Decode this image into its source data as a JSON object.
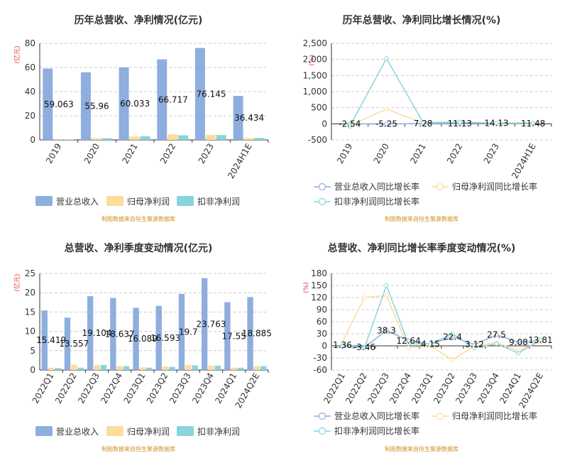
{
  "colors": {
    "revenue": "#8eaede",
    "parent_profit": "#fddc9c",
    "deducted_profit": "#87d5db",
    "axis_text": "#333333",
    "unit_text": "#e5322d",
    "grid": "#cccccc",
    "source_text": "#cc8f1f"
  },
  "source_note": "制图数据来自恒生聚源数据库",
  "chart_data": [
    {
      "id": "annual-amounts",
      "type": "bar",
      "title": "历年总营收、净利情况(亿元)",
      "ylabel": "亿元",
      "ylim": [
        0,
        80
      ],
      "yticks": [
        0,
        20,
        40,
        60,
        80
      ],
      "grid": true,
      "legend_position": "bottom",
      "categories": [
        "2019",
        "2020",
        "2021",
        "2022",
        "2023",
        "2024H1E"
      ],
      "series": [
        {
          "name": "营业总收入",
          "values": [
            59.063,
            55.96,
            60.033,
            66.717,
            76.145,
            36.434
          ],
          "labels": [
            "59.063",
            "55.96",
            "60.033",
            "66.717",
            "76.145",
            "36.434"
          ]
        },
        {
          "name": "归母净利润",
          "values": [
            0.2,
            1.5,
            2.8,
            4.5,
            4.2,
            1.6
          ]
        },
        {
          "name": "扣非净利润",
          "values": [
            0.3,
            1.4,
            3.0,
            3.8,
            4.0,
            1.6
          ]
        }
      ]
    },
    {
      "id": "annual-growth",
      "type": "line",
      "title": "历年总营收、净利同比增长情况(%)",
      "ylabel": "%",
      "ylim": [
        -500,
        2500
      ],
      "yticks": [
        -500,
        0,
        500,
        1000,
        1500,
        2000,
        2500
      ],
      "ytick_labels": [
        "-500",
        "0",
        "500",
        "1,000",
        "1,500",
        "2,000",
        "2,500"
      ],
      "grid": true,
      "legend_position": "bottom",
      "categories": [
        "2019",
        "2020",
        "2021",
        "2022",
        "2023",
        "2024H1E"
      ],
      "series": [
        {
          "name": "营业总收入同比增长率",
          "values": [
            -2.54,
            -5.25,
            7.28,
            11.13,
            14.13,
            11.48
          ],
          "labels": [
            "-2.54",
            "-5.25",
            "7.28",
            "11.13",
            "14.13",
            "11.48"
          ]
        },
        {
          "name": "归母净利润同比增长率",
          "values": [
            -60,
            460,
            20,
            70,
            10,
            20
          ]
        },
        {
          "name": "扣非净利润同比增长率",
          "values": [
            -80,
            2030,
            40,
            50,
            20,
            30
          ]
        }
      ]
    },
    {
      "id": "quarterly-amounts",
      "type": "bar",
      "title": "总营收、净利季度变动情况(亿元)",
      "ylabel": "亿元",
      "ylim": [
        0,
        25
      ],
      "yticks": [
        0,
        5,
        10,
        15,
        20,
        25
      ],
      "grid": true,
      "legend_position": "bottom",
      "categories": [
        "2022Q1",
        "2022Q2",
        "2022Q3",
        "2022Q4",
        "2023Q1",
        "2023Q2",
        "2023Q3",
        "2023Q4",
        "2024Q1",
        "2024Q2E"
      ],
      "series": [
        {
          "name": "营业总收入",
          "values": [
            15.419,
            13.557,
            19.104,
            18.637,
            16.089,
            16.593,
            19.7,
            23.763,
            17.55,
            18.885
          ],
          "labels": [
            "15.419",
            "13.557",
            "19.104",
            "18.637",
            "16.089",
            "16.593",
            "19.7",
            "23.763",
            "17.55",
            "18.885"
          ]
        },
        {
          "name": "归母净利润",
          "values": [
            0.6,
            1.4,
            1.3,
            1.0,
            0.7,
            0.9,
            1.3,
            1.1,
            0.6,
            1.0
          ]
        },
        {
          "name": "扣非净利润",
          "values": [
            0.5,
            0.6,
            1.3,
            1.0,
            0.6,
            0.8,
            1.2,
            1.1,
            0.6,
            1.0
          ]
        }
      ]
    },
    {
      "id": "quarterly-growth",
      "type": "line",
      "title": "总营收、净利同比增长率季度变动情况(%)",
      "ylabel": "%",
      "ylim": [
        -60,
        180
      ],
      "yticks": [
        -60,
        -30,
        0,
        30,
        60,
        90,
        120,
        150,
        180
      ],
      "grid": true,
      "legend_position": "bottom",
      "categories": [
        "2022Q1",
        "2022Q2",
        "2022Q3",
        "2022Q4",
        "2023Q1",
        "2023Q2",
        "2023Q3",
        "2023Q4",
        "2024Q1",
        "2024Q2E"
      ],
      "series": [
        {
          "name": "营业总收入同比增长率",
          "values": [
            1.36,
            -3.46,
            38.3,
            12.64,
            4.15,
            22.4,
            3.12,
            27.5,
            9.08,
            13.81
          ],
          "labels": [
            "1.36",
            "-3.46",
            "38.3",
            "12.64",
            "4.15",
            "22.4",
            "3.12",
            "27.5",
            "9.08",
            "13.81"
          ]
        },
        {
          "name": "归母净利润同比增长率",
          "values": [
            10,
            120,
            125,
            -5,
            0,
            -35,
            0,
            8,
            -12,
            10
          ]
        },
        {
          "name": "扣非净利润同比增长率",
          "values": [
            -2,
            -5,
            150,
            5,
            5,
            30,
            -5,
            5,
            -18,
            15
          ]
        }
      ]
    }
  ]
}
